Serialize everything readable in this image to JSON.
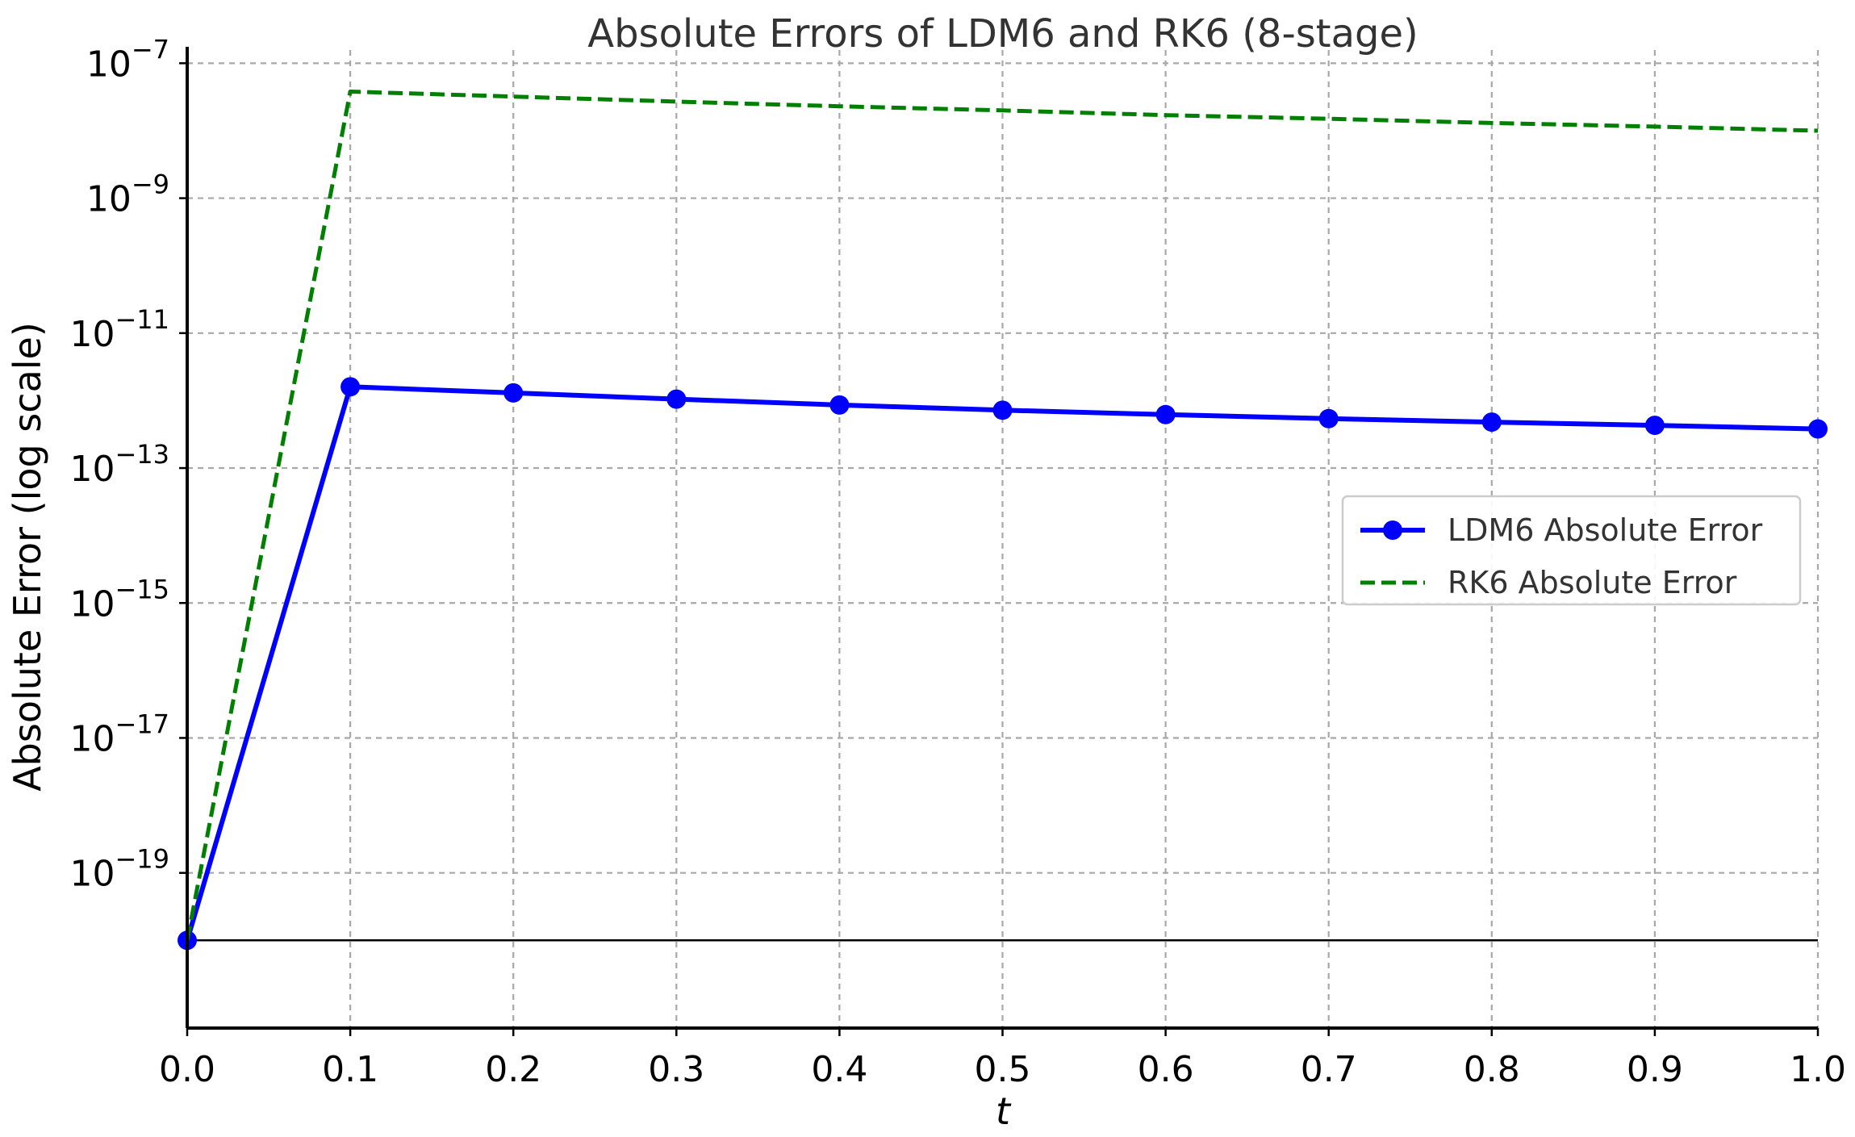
{
  "chart_data": {
    "type": "line",
    "title": "Absolute Errors of LDM6 and RK6 (8-stage)",
    "xlabel": "t",
    "ylabel": "Absolute Error (log scale)",
    "xlim": [
      0.0,
      1.0
    ],
    "ylim_exponent": [
      -21.3,
      -6.9
    ],
    "yscale": "log",
    "grid": true,
    "legend_position": "right",
    "x_ticks": [
      "0.0",
      "0.1",
      "0.2",
      "0.3",
      "0.4",
      "0.5",
      "0.6",
      "0.7",
      "0.8",
      "0.9",
      "1.0"
    ],
    "y_tick_exponents": [
      -7,
      -9,
      -11,
      -13,
      -15,
      -17,
      -19
    ],
    "y_tick_base": "10",
    "x": [
      0.0,
      0.1,
      0.2,
      0.3,
      0.4,
      0.5,
      0.6,
      0.7,
      0.8,
      0.9,
      1.0
    ],
    "series": [
      {
        "name": "LDM6 Absolute Error",
        "color": "#0000ff",
        "line_style": "solid",
        "marker": "circle",
        "values": [
          1e-20,
          1.6e-12,
          1.3e-12,
          1.05e-12,
          8.6e-13,
          7.2e-13,
          6.2e-13,
          5.4e-13,
          4.8e-13,
          4.3e-13,
          3.8e-13
        ]
      },
      {
        "name": "RK6 Absolute Error",
        "color": "#008000",
        "line_style": "dashed",
        "marker": "none",
        "values": [
          1e-20,
          3.8e-08,
          3.2e-08,
          2.7e-08,
          2.3e-08,
          2e-08,
          1.7e-08,
          1.5e-08,
          1.3e-08,
          1.15e-08,
          1e-08
        ]
      }
    ],
    "reference_line_value": 1e-20,
    "reference_line_color": "#000000"
  }
}
